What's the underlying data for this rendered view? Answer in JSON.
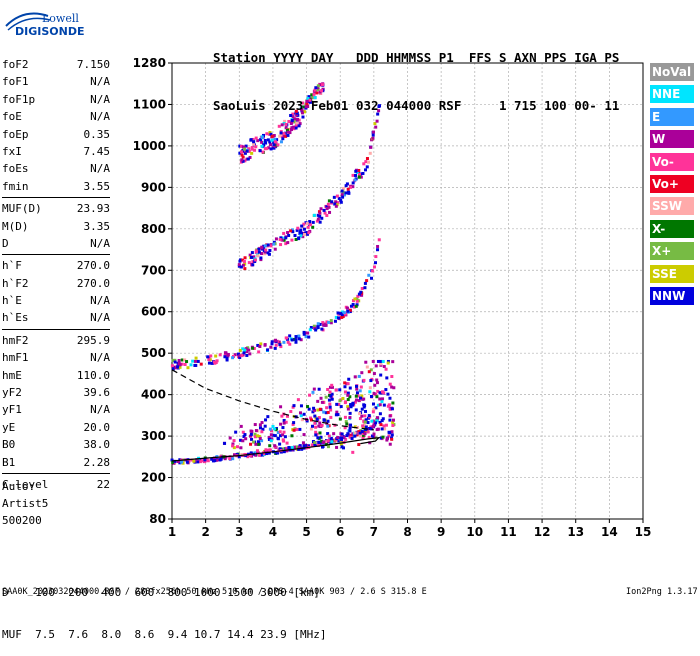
{
  "logo": {
    "line1": "Lowell",
    "line2": "DIGISONDE"
  },
  "header": {
    "line1": "Station YYYY DAY   DDD HHMMSS P1  FFS S AXN PPS IGA PS",
    "line2": "SaoLuis 2023 Feb01 032 044000 RSF     1 715 100 00- 11"
  },
  "params": [
    {
      "name": "foF2",
      "value": "7.150"
    },
    {
      "name": "foF1",
      "value": "N/A"
    },
    {
      "name": "foF1p",
      "value": "N/A"
    },
    {
      "name": "foE",
      "value": "N/A"
    },
    {
      "name": "foEp",
      "value": "0.35"
    },
    {
      "name": "fxI",
      "value": "7.45"
    },
    {
      "name": "foEs",
      "value": "N/A"
    },
    {
      "name": "fmin",
      "value": "3.55"
    },
    {
      "name": "MUF(D)",
      "value": "23.93"
    },
    {
      "name": "M(D)",
      "value": "3.35"
    },
    {
      "name": "D",
      "value": "N/A"
    },
    {
      "name": "h`F",
      "value": "270.0"
    },
    {
      "name": "h`F2",
      "value": "270.0"
    },
    {
      "name": "h`E",
      "value": "N/A"
    },
    {
      "name": "h`Es",
      "value": "N/A"
    },
    {
      "name": "hmF2",
      "value": "295.9"
    },
    {
      "name": "hmF1",
      "value": "N/A"
    },
    {
      "name": "hmE",
      "value": "110.0"
    },
    {
      "name": "yF2",
      "value": "39.6"
    },
    {
      "name": "yF1",
      "value": "N/A"
    },
    {
      "name": "yE",
      "value": "20.0"
    },
    {
      "name": "B0",
      "value": "38.0"
    },
    {
      "name": "B1",
      "value": "2.28"
    },
    {
      "name": "C-level",
      "value": "22"
    }
  ],
  "auto": {
    "label": "Auto:",
    "program": "Artist5",
    "version": "500200"
  },
  "legend": [
    {
      "name": "NoVal",
      "color": "#999999"
    },
    {
      "name": "NNE",
      "color": "#00e5ff"
    },
    {
      "name": "E",
      "color": "#3399ff"
    },
    {
      "name": "W",
      "color": "#aa0099"
    },
    {
      "name": "Vo-",
      "color": "#ff3399"
    },
    {
      "name": "Vo+",
      "color": "#ee0022"
    },
    {
      "name": "SSW",
      "color": "#ffaaaa"
    },
    {
      "name": "X-",
      "color": "#007700"
    },
    {
      "name": "X+",
      "color": "#77bb44"
    },
    {
      "name": "SSE",
      "color": "#cccc00"
    },
    {
      "name": "NNW",
      "color": "#0000dd"
    }
  ],
  "footer": {
    "line1": "D    100  200  400  600  800 1000 1500 3000 [km]",
    "line2": "MUF  7.5  7.6  8.0  8.6  9.4 10.7 14.4 23.9 [MHz]",
    "bottom": "SAA0K_2023032044000.RSF / 280fx256h 50 kHz 5.0 km / DPS-4 SAA0K 903 / 2.6 S 315.8 E",
    "version": "Ion2Png 1.3.17"
  },
  "chart_data": {
    "type": "scatter",
    "title": "",
    "xlabel": "",
    "ylabel": "",
    "xlim": [
      1,
      15
    ],
    "ylim": [
      80,
      1280
    ],
    "x_ticks": [
      1,
      2,
      3,
      4,
      5,
      6,
      7,
      8,
      9,
      10,
      11,
      12,
      13,
      14,
      15
    ],
    "y_ticks": [
      80,
      200,
      300,
      400,
      500,
      600,
      700,
      800,
      900,
      1000,
      1100,
      1280
    ],
    "traces": [
      {
        "name": "F trace (1st hop)",
        "points": [
          [
            1.0,
            238
          ],
          [
            2.0,
            243
          ],
          [
            3.0,
            252
          ],
          [
            4.0,
            262
          ],
          [
            5.0,
            275
          ],
          [
            6.0,
            292
          ],
          [
            6.5,
            305
          ],
          [
            7.0,
            325
          ],
          [
            7.2,
            355
          ],
          [
            7.3,
            420
          ]
        ]
      },
      {
        "name": "2nd hop",
        "points": [
          [
            1.0,
            472
          ],
          [
            2.0,
            480
          ],
          [
            3.0,
            500
          ],
          [
            4.0,
            520
          ],
          [
            5.0,
            545
          ],
          [
            6.0,
            590
          ],
          [
            6.5,
            625
          ],
          [
            7.0,
            700
          ],
          [
            7.2,
            800
          ]
        ]
      },
      {
        "name": "3rd hop",
        "points": [
          [
            3.0,
            710
          ],
          [
            4.0,
            760
          ],
          [
            5.0,
            800
          ],
          [
            6.0,
            875
          ],
          [
            6.8,
            960
          ],
          [
            7.2,
            1100
          ]
        ]
      },
      {
        "name": "4th hop",
        "points": [
          [
            3.0,
            980
          ],
          [
            4.0,
            1015
          ],
          [
            4.8,
            1070
          ],
          [
            5.2,
            1140
          ],
          [
            5.5,
            1180
          ]
        ]
      }
    ],
    "cloud": [
      {
        "name": "Spread F region",
        "x": [
          2.5,
          7.6
        ],
        "y": [
          260,
          480
        ]
      }
    ],
    "profile_curve": {
      "name": "true height profile",
      "points": [
        [
          1.0,
          240
        ],
        [
          2.0,
          247
        ],
        [
          3.0,
          253
        ],
        [
          4.0,
          262
        ],
        [
          5.0,
          272
        ],
        [
          6.0,
          283
        ],
        [
          6.8,
          293
        ],
        [
          7.15,
          296
        ],
        [
          7.05,
          288
        ],
        [
          6.6,
          282
        ]
      ]
    },
    "profile_dashed": {
      "name": "model extrapolation",
      "points": [
        [
          1.0,
          460
        ],
        [
          2.0,
          415
        ],
        [
          3.0,
          385
        ],
        [
          4.0,
          360
        ],
        [
          5.0,
          340
        ],
        [
          6.0,
          325
        ],
        [
          7.0,
          315
        ]
      ]
    }
  }
}
